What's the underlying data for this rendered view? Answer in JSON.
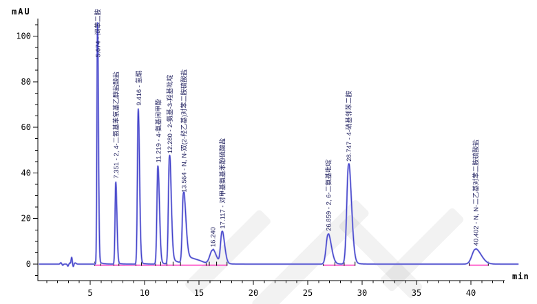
{
  "chart_data": {
    "type": "line",
    "title": "",
    "xlabel": "min",
    "ylabel": "mAU",
    "xlim": [
      0,
      44.4
    ],
    "ylim": [
      -7,
      108
    ],
    "x_major_ticks": [
      5,
      10,
      15,
      20,
      25,
      30,
      35,
      40
    ],
    "x_minor_tick_step": 1,
    "y_major_ticks": [
      0,
      20,
      40,
      60,
      80,
      100
    ],
    "y_minor_tick_step": 5,
    "grid": "off",
    "legend": "none",
    "colors": {
      "trace": "#4040c8",
      "trace_halo": "#9a9ae6",
      "integration_baseline": "#ff2fbb",
      "axis": "#000000",
      "peak_label_text": "#1f1f5e"
    },
    "peaks": [
      {
        "rt_label": "5.674",
        "rt": 5.674,
        "name": "间苯二胺",
        "height_mAU": 106,
        "sigma": 0.055,
        "asym": 1.5,
        "tail_amp": 0.015,
        "tail_tau": 0.3
      },
      {
        "rt_label": "7.351",
        "rt": 7.351,
        "name": "2, 4-二氨基苯氧基乙醇盐酸盐",
        "height_mAU": 36,
        "sigma": 0.065,
        "asym": 1.6,
        "tail_amp": 0.02,
        "tail_tau": 0.3
      },
      {
        "rt_label": "9.416",
        "rt": 9.416,
        "name": "氢醌",
        "height_mAU": 68,
        "sigma": 0.075,
        "asym": 1.6,
        "tail_amp": 0.02,
        "tail_tau": 0.3
      },
      {
        "rt_label": "11.219",
        "rt": 11.219,
        "name": "4-氨基间甲酚",
        "height_mAU": 43,
        "sigma": 0.085,
        "asym": 1.7,
        "tail_amp": 0.03,
        "tail_tau": 0.35
      },
      {
        "rt_label": "12.280",
        "rt": 12.28,
        "name": "2-氨基-3-羟基吡啶",
        "height_mAU": 47,
        "sigma": 0.09,
        "asym": 1.8,
        "tail_amp": 0.09,
        "tail_tau": 0.5
      },
      {
        "rt_label": "13.564",
        "rt": 13.564,
        "name": "N, N-双(2-羟乙基)对苯二胺硫酸盐",
        "height_mAU": 30,
        "sigma": 0.1,
        "asym": 2.2,
        "tail_amp": 0.08,
        "tail_tau": 0.8
      },
      {
        "rt_label": "16.240",
        "rt": 16.24,
        "name": "",
        "height_mAU": 6,
        "sigma": 0.24,
        "asym": 1.4,
        "tail_amp": 0.12,
        "tail_tau": 0.35
      },
      {
        "rt_label": "17.117",
        "rt": 17.117,
        "name": "对甲基氨基苯酚硫酸盐",
        "height_mAU": 14,
        "sigma": 0.13,
        "asym": 1.8,
        "tail_amp": 0.06,
        "tail_tau": 0.35
      },
      {
        "rt_label": "26.859",
        "rt": 26.859,
        "name": "2, 6-二氨基吡啶",
        "height_mAU": 13,
        "sigma": 0.17,
        "asym": 1.8,
        "tail_amp": 0.06,
        "tail_tau": 0.4
      },
      {
        "rt_label": "28.747",
        "rt": 28.747,
        "name": "4-硝基邻苯二胺",
        "height_mAU": 43.5,
        "sigma": 0.16,
        "asym": 1.7,
        "tail_amp": 0.05,
        "tail_tau": 0.4
      },
      {
        "rt_label": "40.402",
        "rt": 40.402,
        "name": "N, N-二乙基对苯二胺硫酸盐",
        "height_mAU": 6.5,
        "sigma": 0.3,
        "asym": 1.8,
        "tail_amp": 0.05,
        "tail_tau": 0.5
      }
    ],
    "baseline_artifacts": [
      {
        "t": 2.3,
        "h": 0.6,
        "s": 0.06
      },
      {
        "t": 2.48,
        "h": -0.5,
        "s": 0.05
      },
      {
        "t": 2.95,
        "h": -0.9,
        "s": 0.05
      },
      {
        "t": 3.12,
        "h": 0.5,
        "s": 0.04
      },
      {
        "t": 3.3,
        "h": 3.0,
        "s": 0.055
      },
      {
        "t": 3.44,
        "h": -1.2,
        "s": 0.05
      },
      {
        "t": 3.62,
        "h": 0.5,
        "s": 0.09
      },
      {
        "t": 14.25,
        "h": 1.6,
        "s": 0.5
      },
      {
        "t": 15.1,
        "h": 0.8,
        "s": 0.4
      }
    ],
    "integration_segments": [
      [
        5.35,
        17.6
      ],
      [
        26.4,
        29.35
      ],
      [
        39.8,
        41.6
      ]
    ],
    "integration_marks": [
      5.42,
      5.98,
      7.18,
      7.64,
      9.2,
      9.72,
      11.0,
      11.48,
      12.06,
      12.62,
      13.3,
      15.66,
      15.95,
      16.62,
      17.58,
      26.42,
      27.5,
      28.35,
      29.35,
      39.85,
      41.6
    ]
  }
}
